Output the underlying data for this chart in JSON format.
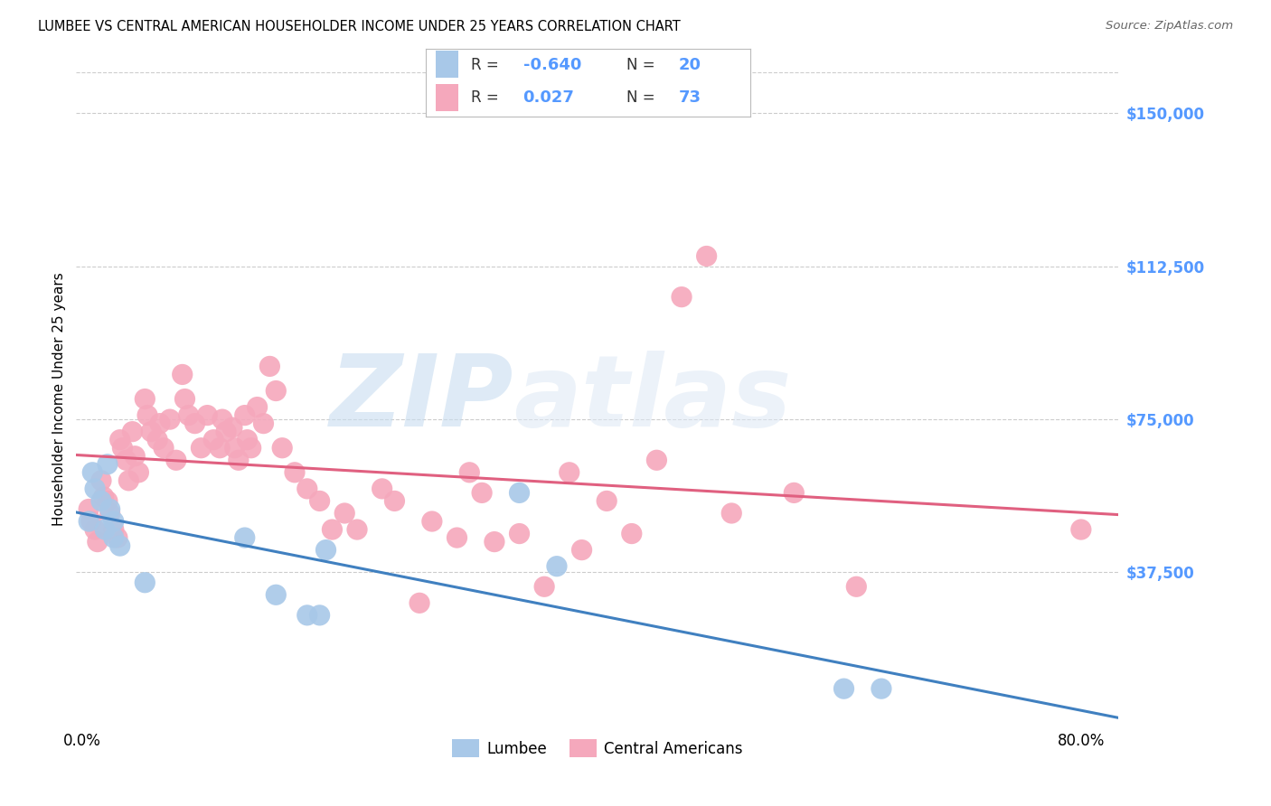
{
  "title": "LUMBEE VS CENTRAL AMERICAN HOUSEHOLDER INCOME UNDER 25 YEARS CORRELATION CHART",
  "source": "Source: ZipAtlas.com",
  "ylabel": "Householder Income Under 25 years",
  "watermark_zip": "ZIP",
  "watermark_atlas": "atlas",
  "lumbee_R": "-0.640",
  "lumbee_N": "20",
  "central_R": "0.027",
  "central_N": "73",
  "x_ticks": [
    0.0,
    0.1,
    0.2,
    0.3,
    0.4,
    0.5,
    0.6,
    0.7,
    0.8
  ],
  "x_tick_labels": [
    "0.0%",
    "",
    "",
    "",
    "",
    "",
    "",
    "",
    "80.0%"
  ],
  "y_ticks": [
    0,
    37500,
    75000,
    112500,
    150000
  ],
  "y_tick_labels": [
    "",
    "$37,500",
    "$75,000",
    "$112,500",
    "$150,000"
  ],
  "ylim": [
    0,
    160000
  ],
  "xlim": [
    -0.005,
    0.83
  ],
  "lumbee_color": "#a8c8e8",
  "central_color": "#f5a8bc",
  "lumbee_line_color": "#4080c0",
  "central_line_color": "#e06080",
  "y_tick_color": "#5599ff",
  "lumbee_scatter_x": [
    0.005,
    0.008,
    0.01,
    0.015,
    0.018,
    0.02,
    0.022,
    0.025,
    0.025,
    0.03,
    0.05,
    0.13,
    0.155,
    0.18,
    0.19,
    0.195,
    0.35,
    0.38,
    0.61,
    0.64
  ],
  "lumbee_scatter_y": [
    50000,
    62000,
    58000,
    55000,
    48000,
    64000,
    53000,
    46000,
    50000,
    44000,
    35000,
    46000,
    32000,
    27000,
    27000,
    43000,
    57000,
    39000,
    9000,
    9000
  ],
  "central_scatter_x": [
    0.005,
    0.007,
    0.01,
    0.012,
    0.015,
    0.017,
    0.02,
    0.022,
    0.025,
    0.028,
    0.03,
    0.032,
    0.035,
    0.037,
    0.04,
    0.042,
    0.045,
    0.05,
    0.052,
    0.055,
    0.06,
    0.062,
    0.065,
    0.07,
    0.075,
    0.08,
    0.082,
    0.085,
    0.09,
    0.095,
    0.1,
    0.105,
    0.11,
    0.112,
    0.115,
    0.12,
    0.122,
    0.125,
    0.13,
    0.132,
    0.135,
    0.14,
    0.145,
    0.15,
    0.155,
    0.16,
    0.17,
    0.18,
    0.19,
    0.2,
    0.21,
    0.22,
    0.24,
    0.25,
    0.27,
    0.28,
    0.3,
    0.31,
    0.32,
    0.33,
    0.35,
    0.37,
    0.39,
    0.4,
    0.42,
    0.44,
    0.46,
    0.48,
    0.5,
    0.52,
    0.57,
    0.62,
    0.8
  ],
  "central_scatter_y": [
    53000,
    50000,
    48000,
    45000,
    60000,
    56000,
    55000,
    52000,
    48000,
    46000,
    70000,
    68000,
    65000,
    60000,
    72000,
    66000,
    62000,
    80000,
    76000,
    72000,
    70000,
    74000,
    68000,
    75000,
    65000,
    86000,
    80000,
    76000,
    74000,
    68000,
    76000,
    70000,
    68000,
    75000,
    72000,
    73000,
    68000,
    65000,
    76000,
    70000,
    68000,
    78000,
    74000,
    88000,
    82000,
    68000,
    62000,
    58000,
    55000,
    48000,
    52000,
    48000,
    58000,
    55000,
    30000,
    50000,
    46000,
    62000,
    57000,
    45000,
    47000,
    34000,
    62000,
    43000,
    55000,
    47000,
    65000,
    105000,
    115000,
    52000,
    57000,
    34000,
    48000
  ]
}
